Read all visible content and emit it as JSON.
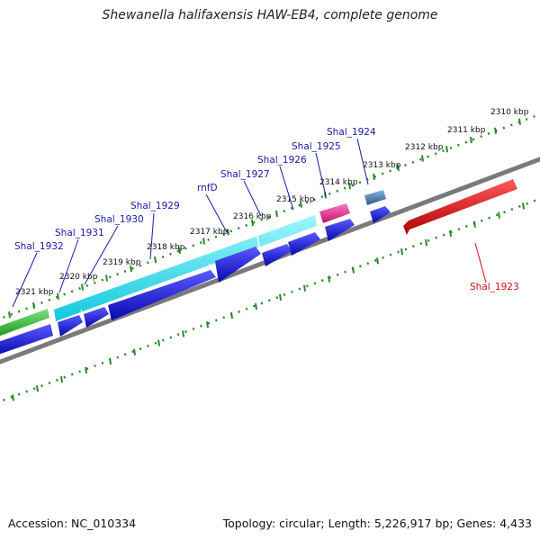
{
  "title": "Shewanella halifaxensis HAW-EB4, complete genome",
  "footer": {
    "accession": "Accession: NC_010334",
    "summary": "Topology: circular; Length: 5,226,917 bp; Genes: 4,433"
  },
  "tick_labels": [
    "2310 kbp",
    "2311 kbp",
    "2312 kbp",
    "2313 kbp",
    "2314 kbp",
    "2315 kbp",
    "2316 kbp",
    "2317 kbp",
    "2318 kbp",
    "2319 kbp",
    "2320 kbp",
    "2321 kbp"
  ],
  "gene_labels": [
    "Shal_1923",
    "Shal_1924",
    "Shal_1925",
    "Shal_1926",
    "Shal_1927",
    "rnfD",
    "Shal_1929",
    "Shal_1930",
    "Shal_1931",
    "Shal_1932"
  ],
  "colors": {
    "label_blue": "#1a1aa8",
    "label_red": "#cc1010",
    "backbone": "#808080",
    "ticks": "#2a8a2a",
    "cds": "#1010e0",
    "cyan": "#20e0f0",
    "green": "#2ab82a",
    "magenta": "#e0208a",
    "steel": "#4a7aaa",
    "red": "#e01010"
  }
}
